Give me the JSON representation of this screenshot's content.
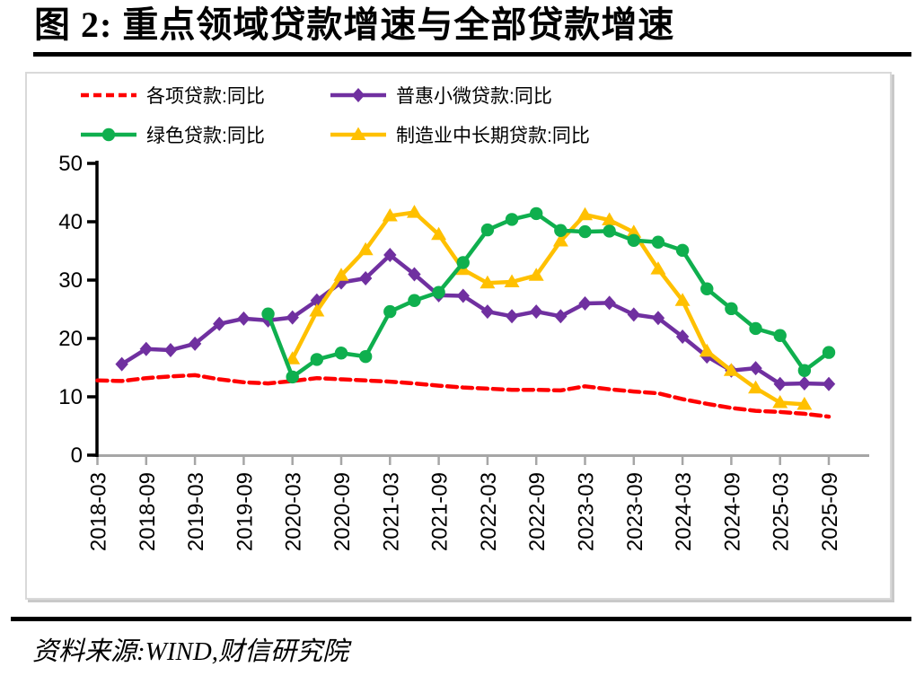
{
  "page": {
    "title": "图 2:  重点领域贷款增速与全部贷款增速",
    "source": "资料来源:WIND,财信研究院"
  },
  "chart_data": {
    "type": "line",
    "title": "重点领域贷款增速与全部贷款增速",
    "xlabel": "",
    "ylabel": "",
    "ylim": [
      0,
      50
    ],
    "y_ticks": [
      0,
      10,
      20,
      30,
      40,
      50
    ],
    "grid": false,
    "legend_position": "top",
    "x": [
      "2018-03",
      "2018-06",
      "2018-09",
      "2018-12",
      "2019-03",
      "2019-06",
      "2019-09",
      "2019-12",
      "2020-03",
      "2020-06",
      "2020-09",
      "2020-12",
      "2021-03",
      "2021-06",
      "2021-09",
      "2021-12",
      "2022-03",
      "2022-06",
      "2022-09",
      "2022-12",
      "2023-03",
      "2023-06",
      "2023-09",
      "2023-12",
      "2024-03",
      "2024-06",
      "2024-09",
      "2024-12",
      "2025-03",
      "2025-06",
      "2025-09"
    ],
    "x_tick_labels": [
      "2018-03",
      "2018-09",
      "2019-03",
      "2019-09",
      "2020-03",
      "2020-09",
      "2021-03",
      "2021-09",
      "2022-03",
      "2022-09",
      "2023-03",
      "2023-09",
      "2024-03",
      "2024-09",
      "2025-03",
      "2025-09"
    ],
    "axis_colors": {
      "y_axis": "#000000",
      "x_axis": "#A6A6A6"
    },
    "series": [
      {
        "name": "各项贷款:同比",
        "color": "#FF0000",
        "style": "dashed",
        "marker": "none",
        "values": [
          12.8,
          12.7,
          13.2,
          13.5,
          13.7,
          13.0,
          12.5,
          12.3,
          12.7,
          13.2,
          13.0,
          12.8,
          12.6,
          12.3,
          11.9,
          11.6,
          11.4,
          11.2,
          11.2,
          11.1,
          11.8,
          11.3,
          10.9,
          10.6,
          9.6,
          8.8,
          8.1,
          7.6,
          7.4,
          7.1,
          6.6
        ]
      },
      {
        "name": "普惠小微贷款:同比",
        "color": "#7030A0",
        "style": "solid",
        "marker": "diamond",
        "values": [
          null,
          15.6,
          18.2,
          18.0,
          19.1,
          22.5,
          23.4,
          23.1,
          23.6,
          26.5,
          29.6,
          30.3,
          34.3,
          31.0,
          27.4,
          27.3,
          24.6,
          23.8,
          24.6,
          23.8,
          26.0,
          26.1,
          24.1,
          23.5,
          20.3,
          16.9,
          14.5,
          14.9,
          12.2,
          12.3,
          12.2
        ]
      },
      {
        "name": "绿色贷款:同比",
        "color": "#0FAF4E",
        "style": "solid",
        "marker": "circle",
        "values": [
          null,
          null,
          null,
          null,
          null,
          null,
          null,
          24.2,
          13.4,
          16.4,
          17.5,
          16.9,
          24.6,
          26.5,
          27.9,
          33.0,
          38.6,
          40.4,
          41.4,
          38.5,
          38.3,
          38.4,
          36.8,
          36.5,
          35.1,
          28.5,
          25.1,
          21.7,
          20.5,
          14.5,
          17.6
        ]
      },
      {
        "name": "制造业中长期贷款:同比",
        "color": "#FFC000",
        "style": "solid",
        "marker": "triangle",
        "values": [
          null,
          null,
          null,
          null,
          null,
          null,
          null,
          null,
          16.5,
          24.7,
          30.8,
          35.2,
          41.0,
          41.6,
          37.8,
          31.8,
          29.5,
          29.7,
          30.8,
          36.7,
          41.2,
          40.3,
          38.2,
          31.9,
          26.5,
          17.8,
          14.5,
          11.5,
          9.0,
          8.7,
          null
        ]
      }
    ]
  }
}
